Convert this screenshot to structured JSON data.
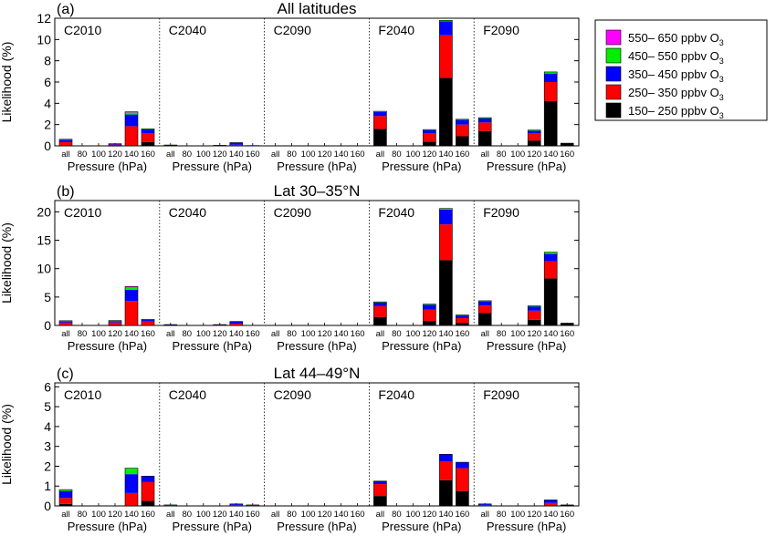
{
  "legend": {
    "placement": "top-right",
    "items": [
      {
        "label": "550– 650 ppbv O",
        "sub": "3",
        "color": "#ff00ff"
      },
      {
        "label": "450– 550 ppbv O",
        "sub": "3",
        "color": "#00ee00"
      },
      {
        "label": "350– 450 ppbv O",
        "sub": "3",
        "color": "#0000ff"
      },
      {
        "label": "250– 350 ppbv O",
        "sub": "3",
        "color": "#ff0000"
      },
      {
        "label": "150– 250 ppbv O",
        "sub": "3",
        "color": "#000000"
      }
    ]
  },
  "chart_data": [
    {
      "type": "bar",
      "stacked": true,
      "panel_label": "(a)",
      "title": "All latitudes",
      "ylabel": "Likelihood (%)",
      "xlabel": "Pressure (hPa)",
      "ylim": [
        0,
        12
      ],
      "yticks": [
        0,
        2,
        4,
        6,
        8,
        10,
        12
      ],
      "categories": [
        "all",
        "80",
        "100",
        "120",
        "140",
        "160"
      ],
      "scenarios": [
        {
          "name": "C2010",
          "bars": [
            [
              0,
              0.35,
              0.25,
              0.02,
              0
            ],
            [
              0,
              0,
              0,
              0,
              0
            ],
            [
              0,
              0,
              0,
              0,
              0
            ],
            [
              0.02,
              0.1,
              0.08,
              0,
              0
            ],
            [
              0,
              1.85,
              1.1,
              0.2,
              0.05
            ],
            [
              0.35,
              0.85,
              0.35,
              0.05,
              0
            ]
          ]
        },
        {
          "name": "C2040",
          "bars": [
            [
              0,
              0,
              0.08,
              0,
              0
            ],
            [
              0,
              0,
              0,
              0,
              0
            ],
            [
              0,
              0,
              0,
              0,
              0
            ],
            [
              0,
              0,
              0.05,
              0,
              0
            ],
            [
              0,
              0.1,
              0.2,
              0,
              0
            ],
            [
              0,
              0,
              0.03,
              0,
              0
            ]
          ]
        },
        {
          "name": "C2090",
          "bars": [
            [
              0,
              0,
              0,
              0,
              0
            ],
            [
              0,
              0,
              0,
              0,
              0
            ],
            [
              0,
              0,
              0,
              0,
              0
            ],
            [
              0,
              0,
              0,
              0,
              0
            ],
            [
              0,
              0,
              0,
              0,
              0
            ],
            [
              0,
              0,
              0,
              0,
              0
            ]
          ]
        },
        {
          "name": "F2040",
          "bars": [
            [
              1.6,
              1.2,
              0.4,
              0.05,
              0
            ],
            [
              0,
              0,
              0,
              0,
              0
            ],
            [
              0,
              0,
              0,
              0,
              0
            ],
            [
              0.4,
              0.8,
              0.3,
              0.03,
              0
            ],
            [
              6.4,
              4.0,
              1.3,
              0.1,
              0
            ],
            [
              0.9,
              1.1,
              0.45,
              0.05,
              0
            ]
          ]
        },
        {
          "name": "F2090",
          "bars": [
            [
              1.4,
              0.8,
              0.4,
              0.05,
              0
            ],
            [
              0,
              0,
              0,
              0,
              0
            ],
            [
              0,
              0,
              0,
              0,
              0
            ],
            [
              0.5,
              0.7,
              0.25,
              0.03,
              0
            ],
            [
              4.2,
              1.8,
              0.8,
              0.15,
              0
            ],
            [
              0.25,
              0,
              0,
              0,
              0
            ]
          ]
        }
      ]
    },
    {
      "type": "bar",
      "stacked": true,
      "panel_label": "(b)",
      "title": "Lat 30–35°N",
      "ylabel": "Likelihood (%)",
      "xlabel": "Pressure (hPa)",
      "ylim": [
        0,
        22
      ],
      "yticks": [
        0,
        5,
        10,
        15,
        20
      ],
      "categories": [
        "all",
        "80",
        "100",
        "120",
        "140",
        "160"
      ],
      "scenarios": [
        {
          "name": "C2010",
          "bars": [
            [
              0,
              0.5,
              0.3,
              0.03,
              0
            ],
            [
              0,
              0,
              0,
              0,
              0
            ],
            [
              0,
              0,
              0,
              0,
              0
            ],
            [
              0.03,
              0.5,
              0.3,
              0.03,
              0
            ],
            [
              0,
              4.3,
              2.0,
              0.5,
              0.05
            ],
            [
              0,
              0.7,
              0.35,
              0.03,
              0
            ]
          ]
        },
        {
          "name": "C2040",
          "bars": [
            [
              0,
              0,
              0.15,
              0,
              0
            ],
            [
              0,
              0,
              0,
              0,
              0
            ],
            [
              0,
              0,
              0,
              0,
              0
            ],
            [
              0,
              0.05,
              0.1,
              0,
              0
            ],
            [
              0,
              0.3,
              0.4,
              0,
              0
            ],
            [
              0,
              0,
              0,
              0,
              0
            ]
          ]
        },
        {
          "name": "C2090",
          "bars": [
            [
              0,
              0,
              0,
              0,
              0
            ],
            [
              0,
              0,
              0,
              0,
              0
            ],
            [
              0,
              0,
              0,
              0,
              0
            ],
            [
              0,
              0,
              0,
              0,
              0
            ],
            [
              0,
              0,
              0,
              0,
              0
            ],
            [
              0,
              0,
              0,
              0,
              0
            ]
          ]
        },
        {
          "name": "F2040",
          "bars": [
            [
              1.5,
              1.9,
              0.7,
              0.05,
              0
            ],
            [
              0,
              0,
              0,
              0,
              0
            ],
            [
              0,
              0,
              0,
              0,
              0
            ],
            [
              0.8,
              2.0,
              0.9,
              0.05,
              0
            ],
            [
              11.5,
              6.3,
              2.6,
              0.2,
              0
            ],
            [
              0.4,
              0.9,
              0.5,
              0.05,
              0
            ]
          ]
        },
        {
          "name": "F2090",
          "bars": [
            [
              2.2,
              1.3,
              0.8,
              0.05,
              0
            ],
            [
              0,
              0,
              0,
              0,
              0
            ],
            [
              0,
              0,
              0,
              0,
              0
            ],
            [
              1.0,
              1.6,
              0.8,
              0.05,
              0
            ],
            [
              8.3,
              3.0,
              1.3,
              0.3,
              0
            ],
            [
              0.4,
              0,
              0,
              0,
              0
            ]
          ]
        }
      ]
    },
    {
      "type": "bar",
      "stacked": true,
      "panel_label": "(c)",
      "title": "Lat 44–49°N",
      "ylabel": "Likelihood (%)",
      "xlabel": "Pressure (hPa)",
      "ylim": [
        0,
        6.2
      ],
      "yticks": [
        0,
        1,
        2,
        3,
        4,
        5,
        6
      ],
      "categories": [
        "all",
        "80",
        "100",
        "120",
        "140",
        "160"
      ],
      "scenarios": [
        {
          "name": "C2010",
          "bars": [
            [
              0.1,
              0.3,
              0.35,
              0.07,
              0
            ],
            [
              0,
              0,
              0,
              0,
              0
            ],
            [
              0,
              0,
              0,
              0,
              0
            ],
            [
              0,
              0,
              0,
              0,
              0
            ],
            [
              0,
              0.65,
              0.95,
              0.3,
              0
            ],
            [
              0.25,
              0.95,
              0.3,
              0,
              0
            ]
          ]
        },
        {
          "name": "C2040",
          "bars": [
            [
              0,
              0.05,
              0,
              0,
              0
            ],
            [
              0,
              0,
              0,
              0,
              0
            ],
            [
              0,
              0,
              0,
              0,
              0
            ],
            [
              0,
              0,
              0,
              0,
              0
            ],
            [
              0,
              0.05,
              0.05,
              0,
              0
            ],
            [
              0,
              0.05,
              0,
              0,
              0
            ]
          ]
        },
        {
          "name": "C2090",
          "bars": [
            [
              0,
              0,
              0,
              0,
              0
            ],
            [
              0,
              0,
              0,
              0,
              0
            ],
            [
              0,
              0,
              0,
              0,
              0
            ],
            [
              0,
              0,
              0,
              0,
              0
            ],
            [
              0,
              0,
              0,
              0,
              0
            ],
            [
              0,
              0,
              0,
              0,
              0
            ]
          ]
        },
        {
          "name": "F2040",
          "bars": [
            [
              0.5,
              0.6,
              0.15,
              0,
              0
            ],
            [
              0,
              0,
              0,
              0,
              0
            ],
            [
              0,
              0,
              0,
              0,
              0
            ],
            [
              0,
              0,
              0,
              0,
              0
            ],
            [
              1.3,
              0.95,
              0.35,
              0,
              0
            ],
            [
              0.75,
              1.15,
              0.3,
              0,
              0
            ]
          ]
        },
        {
          "name": "F2090",
          "bars": [
            [
              0,
              0.05,
              0.05,
              0,
              0
            ],
            [
              0,
              0,
              0,
              0,
              0
            ],
            [
              0,
              0,
              0,
              0,
              0
            ],
            [
              0,
              0,
              0,
              0,
              0
            ],
            [
              0,
              0.15,
              0.15,
              0,
              0
            ],
            [
              0.05,
              0,
              0,
              0,
              0
            ]
          ]
        }
      ]
    }
  ]
}
